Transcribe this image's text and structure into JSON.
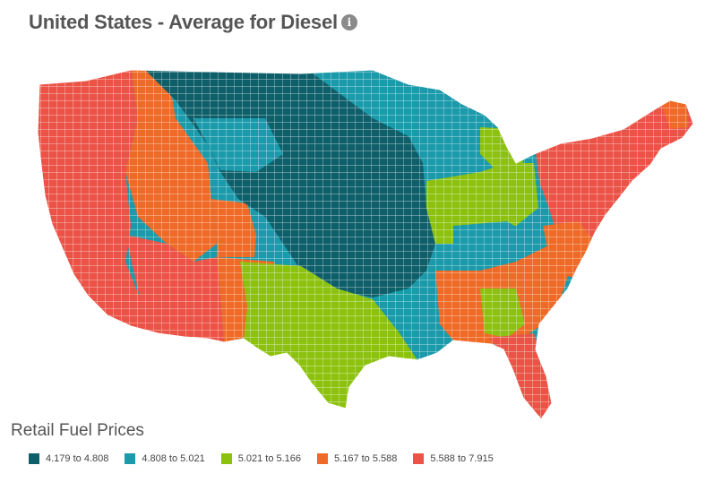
{
  "header": {
    "title": "United States - Average for Diesel",
    "info_glyph": "i",
    "info_icon": "info-icon"
  },
  "map": {
    "region": "United States",
    "unit": "county",
    "fill_classes": [
      "dark-teal",
      "teal",
      "green",
      "orange",
      "red"
    ]
  },
  "legend": {
    "title": "Retail Fuel Prices",
    "items": [
      {
        "label": "4.179 to 4.808",
        "color": "#0f5f6b"
      },
      {
        "label": "4.808 to 5.021",
        "color": "#1a9aaa"
      },
      {
        "label": "5.021 to 5.166",
        "color": "#8cc20f"
      },
      {
        "label": "5.167 to 5.588",
        "color": "#ee6a26"
      },
      {
        "label": "5.588 to 7.915",
        "color": "#ec5346"
      }
    ]
  }
}
